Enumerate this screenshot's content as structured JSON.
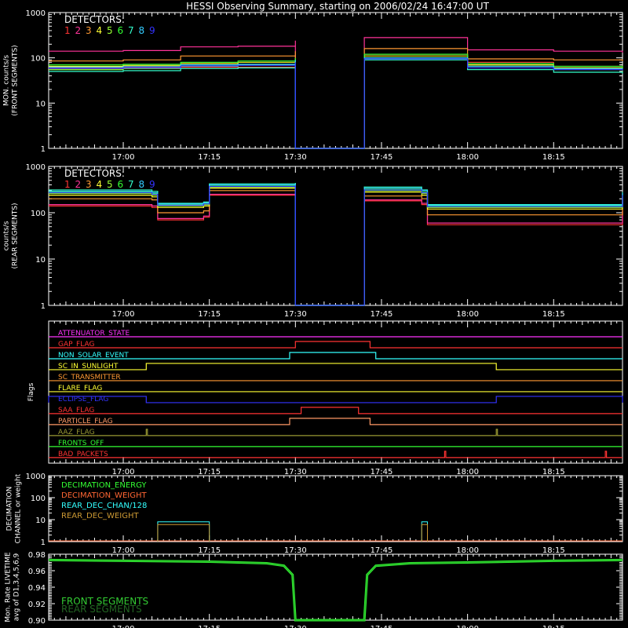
{
  "title": "HESSI Observing Summary, starting on 2006/02/24 16:47:00 UT",
  "colors": {
    "axis": "#ffffff",
    "det1": "#ff3333",
    "det2": "#ff3399",
    "det3": "#ff9933",
    "det4": "#ffff33",
    "det5": "#99ff33",
    "det6": "#33ff33",
    "det7": "#33ffcc",
    "det8": "#33ccff",
    "det9": "#3333ff"
  },
  "chart_data": [
    {
      "type": "line",
      "id": "front",
      "ylabel": [
        "MON. counts/s",
        "(FRONT SEGMENTS)"
      ],
      "yscale": "log",
      "ylim": [
        1,
        1000
      ],
      "ytick_labels": [
        "1",
        "10",
        "100",
        "1000"
      ],
      "xlim": [
        "16:47",
        "18:27"
      ],
      "xtick_labels": [
        "17:00",
        "17:15",
        "17:30",
        "17:45",
        "18:00",
        "18:15"
      ],
      "legend_title": "DETECTORS:",
      "legend_items": [
        "1",
        "2",
        "3",
        "4",
        "5",
        "6",
        "7",
        "8",
        "9"
      ],
      "series_x": [
        "16:47",
        "17:00",
        "17:10",
        "17:20",
        "17:30",
        "17:30",
        "17:42",
        "17:42",
        "18:00",
        "18:15",
        "18:27"
      ],
      "series": [
        {
          "name": "1",
          "values": [
            60,
            62,
            62,
            62,
            80,
            1,
            1,
            120,
            80,
            65,
            60
          ]
        },
        {
          "name": "2",
          "values": [
            140,
            145,
            175,
            180,
            240,
            1,
            1,
            280,
            150,
            140,
            130
          ]
        },
        {
          "name": "3",
          "values": [
            85,
            90,
            110,
            110,
            140,
            1,
            1,
            160,
            95,
            90,
            85
          ]
        },
        {
          "name": "4",
          "values": [
            65,
            68,
            75,
            80,
            95,
            1,
            1,
            110,
            70,
            60,
            58
          ]
        },
        {
          "name": "5",
          "values": [
            55,
            58,
            65,
            70,
            85,
            1,
            1,
            100,
            65,
            55,
            50
          ]
        },
        {
          "name": "6",
          "values": [
            70,
            72,
            80,
            85,
            100,
            1,
            1,
            120,
            75,
            65,
            60
          ]
        },
        {
          "name": "7",
          "values": [
            50,
            52,
            58,
            60,
            75,
            1,
            1,
            90,
            55,
            48,
            45
          ]
        },
        {
          "name": "8",
          "values": [
            62,
            64,
            70,
            72,
            90,
            1,
            1,
            100,
            65,
            58,
            55
          ]
        },
        {
          "name": "9",
          "values": [
            58,
            60,
            66,
            68,
            80,
            1,
            1,
            95,
            60,
            55,
            52
          ]
        }
      ]
    },
    {
      "type": "line",
      "id": "rear",
      "ylabel": [
        "counts/s",
        "(REAR SEGMENTS)"
      ],
      "yscale": "log",
      "ylim": [
        1,
        1000
      ],
      "ytick_labels": [
        "1",
        "10",
        "100",
        "1000"
      ],
      "xlim": [
        "16:47",
        "18:27"
      ],
      "xtick_labels": [
        "17:00",
        "17:15",
        "17:30",
        "17:45",
        "18:00",
        "18:15"
      ],
      "legend_title": "DETECTORS:",
      "legend_items": [
        "1",
        "2",
        "3",
        "4",
        "5",
        "6",
        "7",
        "8",
        "9"
      ],
      "series_x": [
        "16:47",
        "17:05",
        "17:06",
        "17:14",
        "17:15",
        "17:30",
        "17:30",
        "17:42",
        "17:42",
        "17:52",
        "17:53",
        "18:27"
      ],
      "series": [
        {
          "name": "1",
          "values": [
            140,
            130,
            70,
            80,
            240,
            260,
            1,
            1,
            180,
            150,
            55,
            110
          ]
        },
        {
          "name": "2",
          "values": [
            150,
            140,
            75,
            85,
            250,
            270,
            1,
            1,
            190,
            160,
            60,
            115
          ]
        },
        {
          "name": "3",
          "values": [
            200,
            190,
            100,
            110,
            300,
            320,
            1,
            1,
            230,
            200,
            90,
            170
          ]
        },
        {
          "name": "4",
          "values": [
            240,
            220,
            130,
            140,
            340,
            360,
            1,
            1,
            280,
            240,
            120,
            210
          ]
        },
        {
          "name": "5",
          "values": [
            260,
            240,
            140,
            150,
            360,
            380,
            1,
            1,
            300,
            260,
            130,
            230
          ]
        },
        {
          "name": "6",
          "values": [
            280,
            260,
            150,
            160,
            380,
            400,
            1,
            1,
            320,
            280,
            140,
            250
          ]
        },
        {
          "name": "7",
          "values": [
            310,
            290,
            160,
            170,
            420,
            440,
            1,
            1,
            360,
            310,
            150,
            280
          ]
        },
        {
          "name": "8",
          "values": [
            290,
            270,
            155,
            165,
            400,
            420,
            1,
            1,
            340,
            300,
            145,
            265
          ]
        },
        {
          "name": "9",
          "values": [
            270,
            250,
            145,
            155,
            370,
            390,
            1,
            1,
            310,
            270,
            135,
            240
          ]
        }
      ]
    },
    {
      "type": "step",
      "id": "flags",
      "ylabel": [
        "Flags"
      ],
      "xlim": [
        "16:47",
        "18:27"
      ],
      "xtick_labels": [
        "17:00",
        "17:15",
        "17:30",
        "17:45",
        "18:00",
        "18:15"
      ],
      "flags": [
        {
          "name": "ATTENUATOR_STATE",
          "color": "#ff33ff",
          "high": []
        },
        {
          "name": "GAP_FLAG",
          "color": "#ff3333",
          "high": [
            [
              "17:30",
              "17:43"
            ]
          ]
        },
        {
          "name": "NON_SOLAR_EVENT",
          "color": "#33ffff",
          "high": [
            [
              "17:29",
              "17:44"
            ]
          ]
        },
        {
          "name": "SC_IN_SUNLIGHT",
          "color": "#ffff33",
          "high": [
            [
              "17:04",
              "18:05"
            ]
          ]
        },
        {
          "name": "SC_TRANSMITTER",
          "color": "#ff9933",
          "high": []
        },
        {
          "name": "FLARE_FLAG",
          "color": "#ffff33",
          "high": []
        },
        {
          "name": "ECLIPSE_FLAG",
          "color": "#3333ff",
          "high": [
            [
              "16:47",
              "17:04"
            ],
            [
              "18:05",
              "18:27"
            ]
          ]
        },
        {
          "name": "SAA_FLAG",
          "color": "#ff3333",
          "high": [
            [
              "17:31",
              "17:41"
            ]
          ]
        },
        {
          "name": "PARTICLE_FLAG",
          "color": "#ff9966",
          "high": [
            [
              "17:29",
              "17:43"
            ]
          ]
        },
        {
          "name": "AAZ_FLAG",
          "color": "#999933",
          "high": [
            [
              "17:04",
              "17:04"
            ],
            [
              "18:05",
              "18:05"
            ]
          ]
        },
        {
          "name": "FRONTS_OFF",
          "color": "#33ff33",
          "high": []
        },
        {
          "name": "BAD_PACKETS",
          "color": "#ff3333",
          "high": [
            [
              "17:56",
              "17:56"
            ],
            [
              "18:24",
              "18:24"
            ]
          ]
        }
      ]
    },
    {
      "type": "step",
      "id": "decimation",
      "ylabel": [
        "DECIMATION",
        "CHANNEL or weight"
      ],
      "yscale": "log",
      "ylim": [
        1,
        1000
      ],
      "ytick_labels": [
        "1",
        "10",
        "100",
        "1000"
      ],
      "xlim": [
        "16:47",
        "18:27"
      ],
      "xtick_labels": [
        "17:00",
        "17:15",
        "17:30",
        "17:45",
        "18:00",
        "18:15"
      ],
      "legend_items": [
        {
          "name": "DECIMATION_ENERGY",
          "color": "#33ff33"
        },
        {
          "name": "DECIMATION_WEIGHT",
          "color": "#ff6633"
        },
        {
          "name": "REAR_DEC_CHAN/128",
          "color": "#33ffff"
        },
        {
          "name": "REAR_DEC_WEIGHT",
          "color": "#cc9933"
        }
      ],
      "series": [
        {
          "name": "REAR_DEC_CHAN/128",
          "color": "#33ffff",
          "segments": [
            [
              "17:06",
              "17:15",
              8
            ],
            [
              "17:52",
              "17:53",
              8
            ]
          ]
        },
        {
          "name": "REAR_DEC_WEIGHT",
          "color": "#cc9933",
          "segments": [
            [
              "17:06",
              "17:15",
              6
            ],
            [
              "17:52",
              "17:53",
              6
            ]
          ]
        }
      ]
    },
    {
      "type": "line",
      "id": "livetime",
      "ylabel": [
        "Mon. Rate LIVETIME",
        "avg of D1,3,4,5,6,9"
      ],
      "ylim": [
        0.9,
        0.98
      ],
      "ytick_labels": [
        "0.90",
        "0.92",
        "0.94",
        "0.96",
        "0.98"
      ],
      "xlim": [
        "16:47",
        "18:27"
      ],
      "xtick_labels": [
        "17:00",
        "17:15",
        "17:30",
        "17:45",
        "18:00",
        "18:15"
      ],
      "legend_items": [
        {
          "name": "FRONT SEGMENTS",
          "color": "#33cc33"
        },
        {
          "name": "REAR SEGMENTS",
          "color": "#226622"
        }
      ],
      "series_x": [
        "16:47",
        "17:00",
        "17:15",
        "17:25",
        "17:28",
        "17:29.5",
        "17:30",
        "17:42",
        "17:42.5",
        "17:44",
        "17:50",
        "18:00",
        "18:15",
        "18:27"
      ],
      "series": [
        {
          "name": "FRONT SEGMENTS",
          "values": [
            0.973,
            0.972,
            0.971,
            0.969,
            0.966,
            0.955,
            0.9,
            0.9,
            0.955,
            0.966,
            0.969,
            0.97,
            0.972,
            0.973
          ]
        }
      ]
    }
  ]
}
